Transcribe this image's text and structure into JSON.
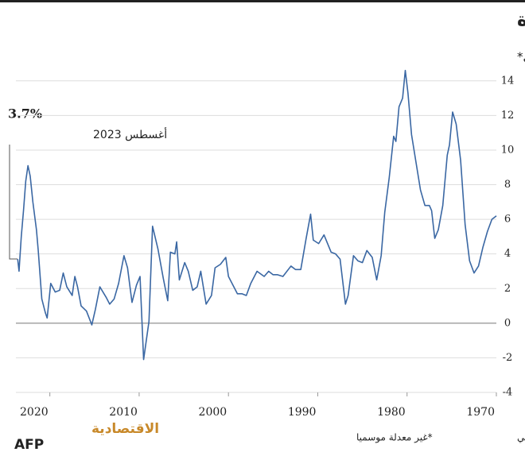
{
  "chart_data": {
    "type": "line",
    "title": "التضخم في الولايات المتحدة",
    "subtitle": "مؤشر أسعار المستهلك، نسبة التغير على أساس سنوي*",
    "annotation": {
      "label": "3.7%",
      "date": "أغسطس 2023"
    },
    "source": "المصدر: بنك الاحتياطي الفدرالي",
    "note": "*غير معدلة موسميا",
    "logo": "الاقتصادية",
    "credit": "AFP",
    "xlim": [
      2023.8,
      1970
    ],
    "xticks": [
      2020,
      2010,
      2000,
      1990,
      1980,
      1970
    ],
    "ylim": [
      -4,
      15
    ],
    "yticks": [
      -4,
      -2,
      0,
      2,
      4,
      6,
      8,
      10,
      12,
      14
    ],
    "grid": true,
    "x_reversed": true,
    "y_axis_side": "right",
    "series": [
      {
        "color": "#3a67a3",
        "x": [
          1970,
          1970.5,
          1971,
          1971.5,
          1972,
          1972.5,
          1973,
          1973.5,
          1974,
          1974.5,
          1974.9,
          1975.25,
          1975.5,
          1976,
          1976.5,
          1976.9,
          1977.25,
          1977.5,
          1978,
          1978.5,
          1979,
          1979.5,
          1979.9,
          1980.2,
          1980.5,
          1980.9,
          1981.25,
          1981.5,
          1982,
          1982.5,
          1982.9,
          1983.4,
          1983.9,
          1984.5,
          1985,
          1985.5,
          1986,
          1986.6,
          1986.9,
          1987.5,
          1988,
          1988.5,
          1989.3,
          1989.9,
          1990.5,
          1990.8,
          1991.3,
          1991.9,
          1992.5,
          1993,
          1993.9,
          1994.5,
          1995,
          1995.5,
          1996,
          1996.8,
          1997.5,
          1998,
          1998.5,
          1999,
          1999.5,
          2000,
          2000.3,
          2000.9,
          2001.5,
          2001.9,
          2002.5,
          2003.1,
          2003.5,
          2004,
          2004.5,
          2004.9,
          2005.5,
          2005.8,
          2006,
          2006.5,
          2006.8,
          2007.3,
          2007.9,
          2008.5,
          2008.9,
          2009.5,
          2009.9,
          2010.3,
          2010.8,
          2011.3,
          2011.7,
          2012.3,
          2012.8,
          2013.3,
          2013.7,
          2014.4,
          2014.9,
          2015.3,
          2015.9,
          2016.5,
          2016.9,
          2017.2,
          2017.5,
          2018.1,
          2018.5,
          2018.9,
          2019.4,
          2019.9,
          2020.3,
          2020.5,
          2020.9,
          2021.3,
          2021.5,
          2021.9,
          2022.2,
          2022.45,
          2022.7,
          2022.95,
          2023.2,
          2023.45,
          2023.6
        ],
        "values": [
          6.2,
          6.0,
          5.3,
          4.4,
          3.3,
          2.9,
          3.6,
          5.7,
          9.4,
          11.5,
          12.2,
          10.3,
          9.7,
          6.8,
          5.4,
          4.9,
          6.5,
          6.8,
          6.8,
          7.7,
          9.3,
          10.9,
          13.3,
          14.6,
          13.0,
          12.5,
          10.5,
          10.8,
          8.4,
          6.4,
          3.9,
          2.5,
          3.8,
          4.2,
          3.5,
          3.6,
          3.9,
          1.6,
          1.1,
          3.7,
          4.0,
          4.1,
          5.1,
          4.6,
          4.8,
          6.3,
          4.9,
          3.1,
          3.1,
          3.3,
          2.7,
          2.8,
          2.8,
          3.0,
          2.7,
          3.0,
          2.3,
          1.6,
          1.7,
          1.7,
          2.2,
          2.7,
          3.8,
          3.4,
          3.2,
          1.6,
          1.1,
          3.0,
          2.1,
          1.9,
          3.0,
          3.5,
          2.5,
          4.7,
          4.0,
          4.1,
          1.3,
          2.6,
          4.3,
          5.6,
          0.1,
          -2.1,
          2.7,
          2.2,
          1.2,
          3.2,
          3.9,
          2.3,
          1.4,
          1.1,
          1.5,
          2.1,
          0.8,
          -0.1,
          0.7,
          1.0,
          2.1,
          2.7,
          1.6,
          2.1,
          2.9,
          1.9,
          1.8,
          2.3,
          0.3,
          0.6,
          1.4,
          4.2,
          5.4,
          7.0,
          8.5,
          9.1,
          8.2,
          6.5,
          5.0,
          3.0,
          3.7
        ]
      }
    ]
  }
}
